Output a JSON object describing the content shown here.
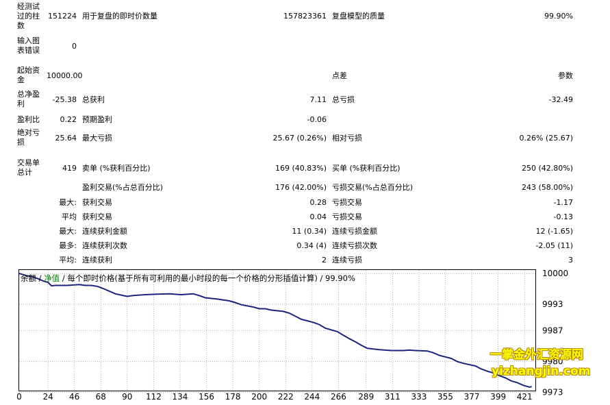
{
  "stats": {
    "r1": {
      "l1": "经测试过的柱数",
      "v1": "151224",
      "l2": "用于复盘的即时价数量",
      "v2": "157823361",
      "l3": "复盘模型的质量",
      "v3": "99.90%"
    },
    "r2": {
      "l1": "输入图表错误",
      "v1": "0"
    },
    "r3": {
      "l1": "起始资金",
      "v1": "10000.00",
      "l3": "点差",
      "v3": "参数"
    },
    "r4": {
      "l1": "总净盈利",
      "v1": "-25.38",
      "l2": "总获利",
      "v2": "7.11",
      "l3": "总亏损",
      "v3": "-32.49"
    },
    "r5": {
      "l1": "盈利比",
      "v1": "0.22",
      "l2": "预期盈利",
      "v2": "-0.06"
    },
    "r6": {
      "l1": "绝对亏损",
      "v1": "25.64",
      "l2": "最大亏损",
      "v2": "25.67 (0.26%)",
      "l3": "相对亏损",
      "v3": "0.26% (25.67)"
    },
    "r7": {
      "l1": "交易单总计",
      "v1": "419",
      "l2": "卖单 (%获利百分比)",
      "v2": "169 (40.83%)",
      "l3": "买单 (%获利百分比)",
      "v3": "250 (42.80%)"
    },
    "r8": {
      "l2": "盈利交易(%占总百分比)",
      "v2": "176 (42.00%)",
      "l3": "亏损交易(%占总百分比)",
      "v3": "243 (58.00%)"
    },
    "r9": {
      "pre": "最大:",
      "l2": "获利交易",
      "v2": "0.28",
      "l3": "亏损交易",
      "v3": "-1.17"
    },
    "r10": {
      "pre": "平均",
      "l2": "获利交易",
      "v2": "0.04",
      "l3": "亏损交易",
      "v3": "-0.13"
    },
    "r11": {
      "pre": "最大:",
      "l2": "连续获利金额",
      "v2": "11 (0.34)",
      "l3": "连续亏损金额",
      "v3": "12 (-1.65)"
    },
    "r12": {
      "pre": "最多:",
      "l2": "连续获利次数",
      "v2": "0.34 (4)",
      "l3": "连续亏损次数",
      "v3": "-2.05 (11)"
    },
    "r13": {
      "pre": "平均:",
      "l2": "连续获利",
      "v2": "2",
      "l3": "连续亏损",
      "v3": "3"
    }
  },
  "legend": {
    "balance": "余额",
    "sep1": " / ",
    "equity": "净值",
    "rest": " / 每个即时价格(基于所有可利用的最小时段的每一个价格的分形插值计算) / 99.90%"
  },
  "colors": {
    "balance_line": "#1a237e",
    "equity_label": "#008000",
    "grid": "#b0b0b0"
  },
  "watermark": {
    "line1": "一掌金外汇资源网",
    "line2": "yizhangjin.com"
  },
  "chart_data": {
    "type": "line",
    "title": "",
    "xlabel": "",
    "ylabel": "",
    "x_ticks": [
      "0",
      "24",
      "46",
      "68",
      "90",
      "112",
      "134",
      "156",
      "178",
      "200",
      "222",
      "244",
      "266",
      "289",
      "311",
      "333",
      "355",
      "377",
      "399",
      "421"
    ],
    "y_ticks": [
      "10000",
      "9993",
      "9987",
      "9980",
      "9973"
    ],
    "ylim": [
      9973.4,
      10000.8
    ],
    "xlim": [
      0,
      430
    ],
    "grid": true,
    "series": [
      {
        "values_x": [
          0,
          5,
          10,
          15,
          20,
          24,
          27,
          30,
          40,
          50,
          55,
          60,
          65,
          70,
          75,
          80,
          85,
          90,
          95,
          105,
          115,
          125,
          135,
          145,
          150,
          155,
          165,
          175,
          180,
          185,
          195,
          200,
          205,
          210,
          220,
          225,
          230,
          235,
          245,
          250,
          255,
          265,
          270,
          275,
          280,
          285,
          290,
          300,
          310,
          320,
          325,
          330,
          340,
          345,
          350,
          360,
          365,
          370,
          380,
          385,
          390,
          395,
          400,
          405,
          410,
          415,
          420,
          425,
          427
        ],
        "values_y": [
          10000,
          9999.6,
          9999.3,
          9998.9,
          9998.3,
          9998.0,
          9997.2,
          9997.3,
          9997.3,
          9997.5,
          9997.3,
          9997.3,
          9997.1,
          9996.6,
          9996.0,
          9995.4,
          9995.1,
          9994.8,
          9995.0,
          9995.2,
          9995.3,
          9995.4,
          9995.2,
          9995.4,
          9995.0,
          9994.5,
          9994.2,
          9993.8,
          9993.4,
          9992.9,
          9992.4,
          9992.0,
          9992.0,
          9991.7,
          9991.4,
          9991.0,
          9990.3,
          9989.6,
          9988.9,
          9988.4,
          9987.6,
          9986.8,
          9986.0,
          9985.2,
          9984.5,
          9983.7,
          9983.0,
          9982.7,
          9982.5,
          9982.5,
          9982.6,
          9982.5,
          9982.4,
          9982.0,
          9981.4,
          9980.7,
          9980.0,
          9979.6,
          9979.0,
          9978.3,
          9977.8,
          9977.4,
          9976.8,
          9976.3,
          9975.6,
          9975.2,
          9974.6,
          9974.2,
          9974.3
        ]
      }
    ]
  }
}
